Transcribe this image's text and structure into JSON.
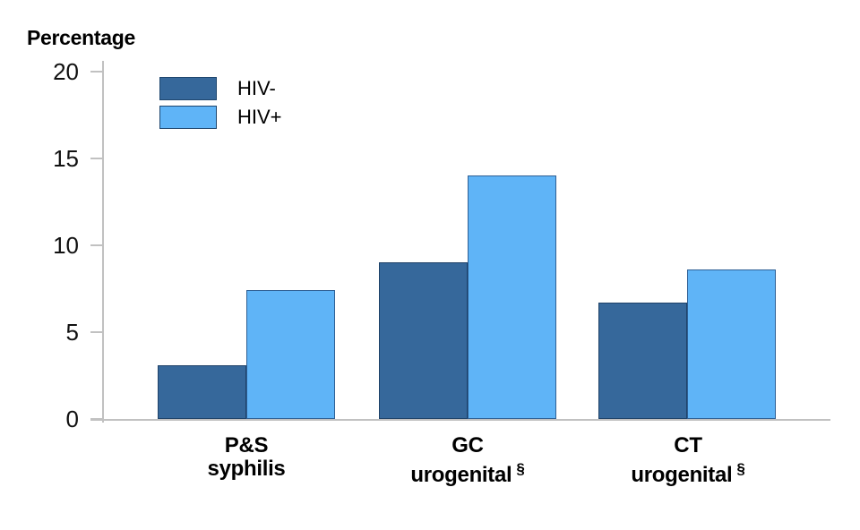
{
  "chart_data": {
    "type": "bar",
    "title": "",
    "ylabel": "Percentage",
    "xlabel": "",
    "categories": [
      {
        "line1": "P&S",
        "line2": "syphilis",
        "sup": ""
      },
      {
        "line1": "GC",
        "line2": "urogenital",
        "sup": "§"
      },
      {
        "line1": "CT",
        "line2": "urogenital",
        "sup": "§"
      }
    ],
    "series": [
      {
        "name": "HIV-",
        "values": [
          3.1,
          9.0,
          6.7
        ],
        "color": "#36689B",
        "border_color": "#1F4268"
      },
      {
        "name": "HIV+",
        "values": [
          7.4,
          14.0,
          8.6
        ],
        "color": "#5FB4F7",
        "border_color": "#2E5F94"
      }
    ],
    "ylim": [
      0,
      20
    ],
    "yticks": [
      0,
      5,
      10,
      15,
      20
    ],
    "grid": false,
    "legend_position": "top-left-inside"
  },
  "colors": {
    "axis": "#C1C1C1",
    "background": "#FFFFFF",
    "text": "#000000",
    "legend_swatch_border": "#1E466E"
  }
}
